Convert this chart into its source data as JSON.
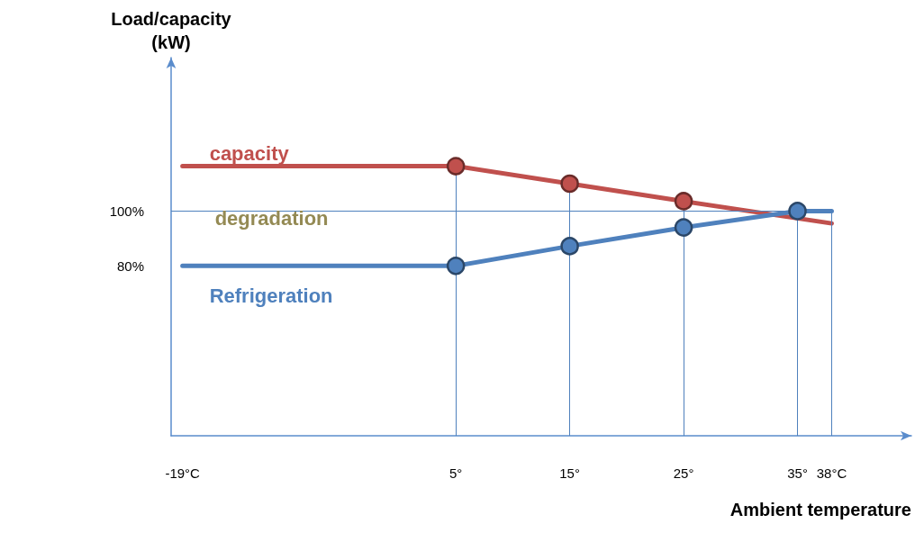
{
  "chart_data": {
    "type": "line",
    "xlabel": "Ambient temperature",
    "ylabel": "Load/capacity\n(kW)",
    "xlim": [
      -20,
      45
    ],
    "ylim": [
      18,
      156
    ],
    "xticks": [
      {
        "value": -19,
        "label": "-19°C"
      },
      {
        "value": 5,
        "label": "5°"
      },
      {
        "value": 15,
        "label": "15°"
      },
      {
        "value": 25,
        "label": "25°"
      },
      {
        "value": 35,
        "label": "35°"
      },
      {
        "value": 38,
        "label": "38°C"
      }
    ],
    "yticks": [
      {
        "value": 80,
        "label": "80%"
      },
      {
        "value": 100,
        "label": "100%"
      }
    ],
    "series": [
      {
        "name": "capacity",
        "color": "#c0504d",
        "x": [
          -19,
          5,
          15,
          25,
          38
        ],
        "values": [
          116.4,
          116.4,
          110,
          103.6,
          95.5
        ]
      },
      {
        "type": "scatter",
        "color": "#c0504d",
        "x": [
          5,
          15,
          25
        ],
        "values": [
          116.4,
          110,
          103.6
        ]
      },
      {
        "name": "Refrigeration",
        "color": "#4f81bd",
        "x": [
          -19,
          5,
          15,
          25,
          35,
          38
        ],
        "values": [
          80,
          80,
          87.2,
          94,
          100,
          100
        ]
      },
      {
        "type": "scatter",
        "color": "#4f81bd",
        "x": [
          5,
          15,
          25,
          35
        ],
        "values": [
          80,
          87.2,
          94,
          100
        ]
      }
    ],
    "annotations": [
      "degradation"
    ],
    "ref_lines": [
      {
        "axis": "y",
        "value": 100,
        "color": "#4f81bd"
      },
      {
        "axis": "x",
        "value": 5,
        "color": "#4f81bd"
      },
      {
        "axis": "x",
        "value": 15,
        "color": "#4f81bd"
      },
      {
        "axis": "x",
        "value": 25,
        "color": "#4f81bd"
      },
      {
        "axis": "x",
        "value": 35,
        "color": "#4f81bd"
      },
      {
        "axis": "x",
        "value": 38,
        "color": "#4f81bd"
      }
    ],
    "grid": false,
    "legend": false
  }
}
